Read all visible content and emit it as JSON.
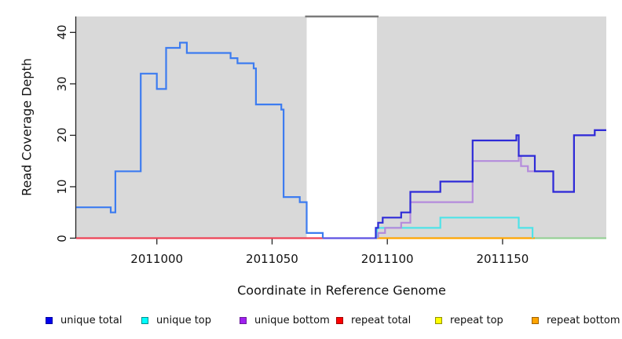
{
  "titles": {
    "x_axis": "Coordinate in Reference Genome",
    "y_axis": "Read Coverage Depth"
  },
  "chart_data": {
    "type": "line",
    "subtype": "step-coverage-plot",
    "title": "",
    "xlabel": "Coordinate in Reference Genome",
    "ylabel": "Read Coverage Depth",
    "xlim": [
      2010965,
      2011195
    ],
    "ylim": [
      0,
      43.1
    ],
    "xticks": [
      2011000,
      2011050,
      2011100,
      2011150
    ],
    "yticks": [
      0,
      10,
      20,
      30,
      40
    ],
    "grid": false,
    "plot_background": "#ffffff",
    "shaded_region_color": "#d9d9d9",
    "shaded_regions": [
      {
        "name": "left-contig",
        "x0": 2010965,
        "x1": 2011065
      },
      {
        "name": "right-contig",
        "x0": 2011095.5,
        "x1": 2011195
      }
    ],
    "gap_region": {
      "name": "assembly-gap",
      "x0": 2011065,
      "x1": 2011095.5,
      "bridge_line_color": "#7a7a7a"
    },
    "series": [
      {
        "name": "repeat total (zero line, left)",
        "legend": "repeat total",
        "color": "#ee4256",
        "steps": [
          [
            2010965,
            0
          ]
        ],
        "end": 2011072
      },
      {
        "name": "unique total (zero line through gap)",
        "legend": "unique total",
        "color": "#5c52e2",
        "steps": [
          [
            2011072,
            0
          ]
        ],
        "end": 2011095.5
      },
      {
        "name": "repeat bottom (zero line, right)",
        "legend": "repeat bottom",
        "color": "#ffa500",
        "steps": [
          [
            2011095.5,
            0
          ]
        ],
        "end": 2011164
      },
      {
        "name": "trailing zero line (right edge)",
        "legend": "",
        "color": "#96d096",
        "steps": [
          [
            2011164,
            0
          ]
        ],
        "end": 2011195
      },
      {
        "name": "unique top",
        "legend": "unique top",
        "color": "#4fe3e8",
        "steps": [
          [
            2011095.5,
            0
          ],
          [
            2011095.5,
            2
          ],
          [
            2011123,
            4
          ],
          [
            2011157,
            2
          ],
          [
            2011163,
            0
          ]
        ],
        "end": 2011163
      },
      {
        "name": "unique bottom",
        "legend": "unique bottom",
        "color": "#b48bdc",
        "steps": [
          [
            2011096,
            0
          ],
          [
            2011096,
            1
          ],
          [
            2011099,
            2
          ],
          [
            2011106,
            3
          ],
          [
            2011110,
            7
          ],
          [
            2011137,
            15
          ],
          [
            2011157,
            16
          ],
          [
            2011158,
            14
          ],
          [
            2011161,
            13
          ],
          [
            2011172,
            9
          ],
          [
            2011181,
            20
          ],
          [
            2011190,
            21
          ]
        ],
        "end": 2011195
      },
      {
        "name": "unique total (left contig)",
        "legend": "unique total",
        "color": "#3d7cf0",
        "steps": [
          [
            2010965,
            6
          ],
          [
            2010980,
            5
          ],
          [
            2010982,
            13
          ],
          [
            2010993,
            32
          ],
          [
            2011000,
            29
          ],
          [
            2011004,
            37
          ],
          [
            2011010,
            38
          ],
          [
            2011013,
            36
          ],
          [
            2011032,
            35
          ],
          [
            2011035,
            34
          ],
          [
            2011042,
            33
          ],
          [
            2011043,
            26
          ],
          [
            2011054,
            25
          ],
          [
            2011055,
            8
          ],
          [
            2011062,
            7
          ],
          [
            2011065,
            1
          ],
          [
            2011072,
            0
          ]
        ],
        "end": 2011072
      },
      {
        "name": "unique total (right contig)",
        "legend": "unique total",
        "color": "#2e2bd8",
        "steps": [
          [
            2011095,
            0
          ],
          [
            2011095,
            2
          ],
          [
            2011096,
            3
          ],
          [
            2011098,
            4
          ],
          [
            2011106,
            5
          ],
          [
            2011110,
            9
          ],
          [
            2011123,
            11
          ],
          [
            2011137,
            19
          ],
          [
            2011156,
            20
          ],
          [
            2011157,
            16
          ],
          [
            2011164,
            13
          ],
          [
            2011172,
            9
          ],
          [
            2011181,
            20
          ],
          [
            2011190,
            21
          ]
        ],
        "end": 2011195
      }
    ],
    "legend": {
      "position": "bottom",
      "entries": [
        {
          "label": "unique total",
          "fill": "#0000ee",
          "border": "#0000a0"
        },
        {
          "label": "unique top",
          "fill": "#00ffff",
          "border": "#009090"
        },
        {
          "label": "unique bottom",
          "fill": "#a020f0",
          "border": "#6a1b9a"
        },
        {
          "label": "repeat total",
          "fill": "#ff0000",
          "border": "#a00000"
        },
        {
          "label": "repeat top",
          "fill": "#ffff00",
          "border": "#909000"
        },
        {
          "label": "repeat bottom",
          "fill": "#ffa500",
          "border": "#a06000"
        }
      ]
    }
  }
}
